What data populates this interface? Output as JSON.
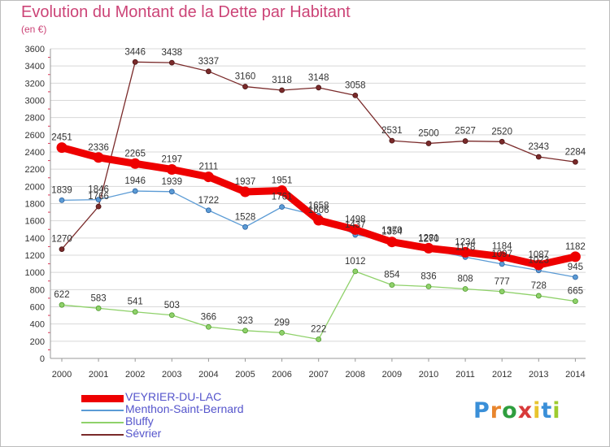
{
  "header": {
    "title": "Evolution du Montant de la Dette par Habitant",
    "subtitle": "(en €)"
  },
  "logo": {
    "text": "Proxiti",
    "letter_colors": [
      "#3a8fd8",
      "#e8862e",
      "#2e9e3e",
      "#d83a3a",
      "#e8c42e",
      "#3a8fd8",
      "#9ecb2e"
    ]
  },
  "chart_data": {
    "type": "line",
    "title": "Evolution du Montant de la Dette par Habitant",
    "subtitle": "(en €)",
    "xlabel": "",
    "ylabel": "",
    "x": [
      "2000",
      "2001",
      "2002",
      "2003",
      "2004",
      "2005",
      "2006",
      "2007",
      "2008",
      "2009",
      "2010",
      "2011",
      "2012",
      "2013",
      "2014"
    ],
    "ylim": [
      0,
      3600
    ],
    "yticks": [
      0,
      200,
      400,
      600,
      800,
      1000,
      1200,
      1400,
      1600,
      1800,
      2000,
      2200,
      2400,
      2600,
      2800,
      3000,
      3200,
      3400,
      3600
    ],
    "grid": "horizontal",
    "legend_position": "bottom-left",
    "series": [
      {
        "name": "VEYRIER-DU-LAC",
        "color": "#ee0000",
        "values": [
          2451,
          2336,
          2265,
          2197,
          2111,
          1937,
          1951,
          1606,
          1498,
          1354,
          1281,
          1234,
          1184,
          1087,
          1182
        ]
      },
      {
        "name": "Menthon-Saint-Bernard",
        "color": "#5b9bd5",
        "values": [
          1839,
          1846,
          1946,
          1939,
          1722,
          1528,
          1761,
          1658,
          1437,
          1370,
          1270,
          1178,
          1097,
          1023,
          945
        ]
      },
      {
        "name": "Bluffy",
        "color": "#8fd16a",
        "values": [
          622,
          583,
          541,
          503,
          366,
          323,
          299,
          222,
          1012,
          854,
          836,
          808,
          777,
          728,
          665
        ]
      },
      {
        "name": "Sévrier",
        "color": "#7a2a2a",
        "values": [
          1270,
          1766,
          3446,
          3438,
          3337,
          3160,
          3118,
          3148,
          3058,
          2531,
          2500,
          2527,
          2520,
          2343,
          2284
        ]
      }
    ]
  }
}
